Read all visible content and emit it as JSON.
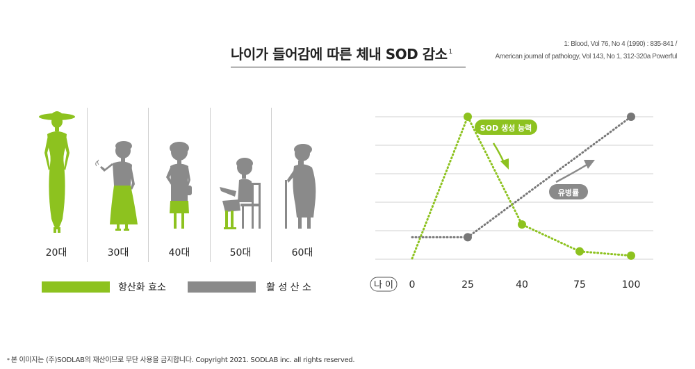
{
  "header": {
    "title": "나이가 들어감에 따른 체내 SOD 감소",
    "title_sup": "1",
    "ref_line1": "1: Blood, Vol 76, No 4 (1990) : 835-841 /",
    "ref_line2": "American journal of pathology, Vol 143, No 1, 312-320a Powerful"
  },
  "figures": {
    "labels": [
      "20대",
      "30대",
      "40대",
      "50대",
      "60대"
    ]
  },
  "legend": {
    "antioxidant_label": "항산화 효소",
    "radical_label": "활 성 산 소",
    "green_color": "#8dc21f",
    "gray_color": "#8a8a8a"
  },
  "chart_data": {
    "type": "line",
    "categories": [
      "0",
      "25",
      "40",
      "75",
      "100"
    ],
    "x_label": "나 이",
    "series": [
      {
        "name": "SOD 생성 능력",
        "color": "#8dc21f",
        "values": [
          0,
          100,
          24,
          5,
          2
        ]
      },
      {
        "name": "유병률",
        "color": "#777777",
        "values": [
          15,
          15,
          null,
          null,
          100
        ]
      }
    ],
    "ylim": [
      0,
      100
    ],
    "grid": true
  },
  "footer": {
    "star": "*",
    "text": "본 이미지는 (주)SODLAB의 재산이므로 무단 사용을 금지합니다. Copyright 2021. SODLAB inc. all rights reserved."
  }
}
